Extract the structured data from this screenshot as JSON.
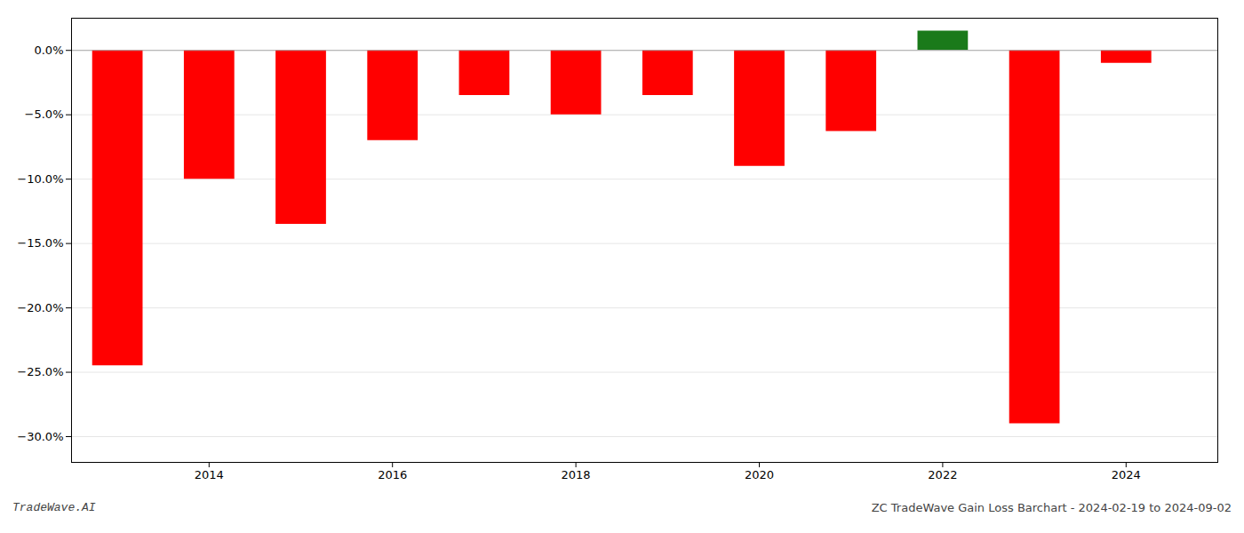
{
  "chart_data": {
    "type": "bar",
    "x": [
      2013,
      2014,
      2015,
      2016,
      2017,
      2018,
      2019,
      2020,
      2021,
      2022,
      2023,
      2024
    ],
    "values": [
      -24.5,
      -10.0,
      -13.5,
      -7.0,
      -3.5,
      -5.0,
      -3.5,
      -9.0,
      -6.3,
      1.5,
      -29.0,
      -1.0
    ],
    "colors": [
      "#ff0000",
      "#ff0000",
      "#ff0000",
      "#ff0000",
      "#ff0000",
      "#ff0000",
      "#ff0000",
      "#ff0000",
      "#ff0000",
      "#1a7a1a",
      "#ff0000",
      "#ff0000"
    ],
    "xlim": [
      2012.5,
      2025.0
    ],
    "xticks": [
      2014,
      2016,
      2018,
      2020,
      2022,
      2024
    ],
    "ylim": [
      -32,
      2.5
    ],
    "yticks": [
      {
        "value": 0.0,
        "label": "0.0%"
      },
      {
        "value": -5.0,
        "label": "−5.0%"
      },
      {
        "value": -10.0,
        "label": "−10.0%"
      },
      {
        "value": -15.0,
        "label": "−15.0%"
      },
      {
        "value": -20.0,
        "label": "−20.0%"
      },
      {
        "value": -25.0,
        "label": "−25.0%"
      },
      {
        "value": -30.0,
        "label": "−30.0%"
      }
    ],
    "grid": true,
    "annotations": [
      "TradeWave.AI",
      "ZC TradeWave Gain Loss Barchart - 2024-02-19 to 2024-09-02"
    ]
  }
}
